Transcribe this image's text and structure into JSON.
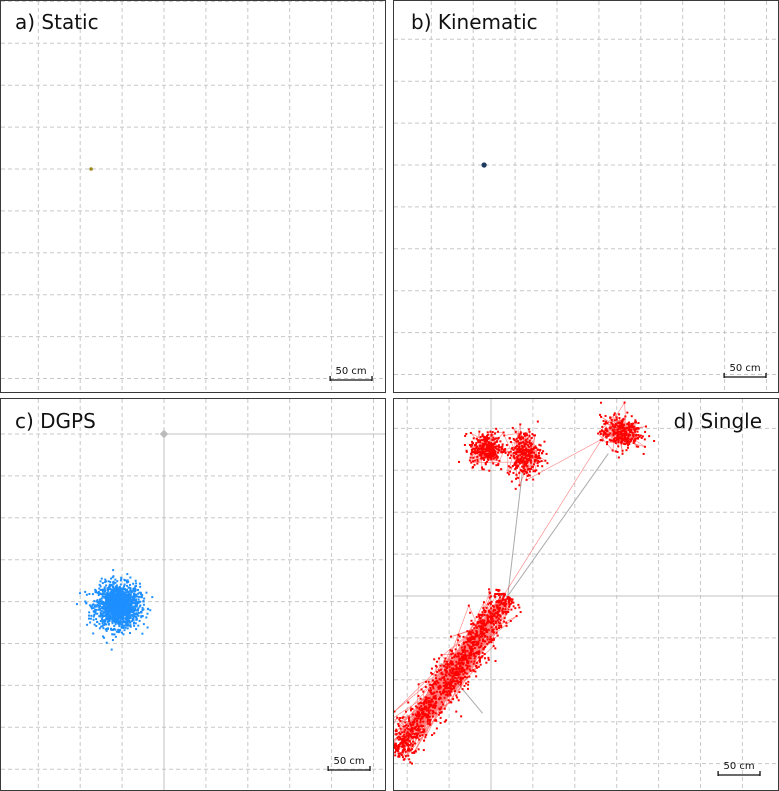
{
  "colors": {
    "grid": "#c8c8c8",
    "axis": "#c0c0c0",
    "track": "#aaaaaa",
    "static_point": "#9a8a1e",
    "kinematic_point": "#1d3a5c",
    "dgps_points": "#1e8fff",
    "single_points": "#ff0000"
  },
  "scale_bar_label": "50 cm",
  "chart_data": [
    {
      "type": "scatter",
      "label": "a) Static",
      "grid": true,
      "legend": "none",
      "points": [
        {
          "x": -87,
          "y": 0
        }
      ],
      "point_color": "#9a8a1e"
    },
    {
      "type": "scatter",
      "label": "b) Kinematic",
      "grid": true,
      "legend": "none",
      "points": [
        {
          "x": -87,
          "y": 0
        }
      ],
      "point_color": "#1d3a5c"
    },
    {
      "type": "scatter",
      "label": "c) DGPS",
      "grid": true,
      "legend": "none",
      "reference_point": {
        "x": 0,
        "y": 0
      },
      "cluster": {
        "center": {
          "x": -55,
          "y": -205
        },
        "spread": {
          "x": 13,
          "y": 13
        },
        "n": 1500
      },
      "point_color": "#1e8fff"
    },
    {
      "type": "scatter",
      "label": "d) Single",
      "grid": true,
      "legend": "none",
      "origin": {
        "x": 0,
        "y": 0
      },
      "clusters": [
        {
          "center": {
            "x": -5,
            "y": 175
          },
          "spread": {
            "x": 10,
            "y": 10
          },
          "n": 300
        },
        {
          "center": {
            "x": 40,
            "y": 170
          },
          "spread": {
            "x": 10,
            "y": 14
          },
          "n": 300
        },
        {
          "center": {
            "x": 155,
            "y": 195
          },
          "spread": {
            "x": 12,
            "y": 10
          },
          "n": 300
        }
      ],
      "elongated": {
        "start": {
          "x": 20,
          "y": 0
        },
        "end": {
          "x": -115,
          "y": -190
        },
        "width": 10,
        "n": 1200
      },
      "connections": [
        {
          "from": {
            "x": 20,
            "y": 0
          },
          "to": {
            "x": 40,
            "y": 170
          }
        },
        {
          "from": {
            "x": 20,
            "y": 0
          },
          "to": {
            "x": 140,
            "y": 170
          }
        },
        {
          "from": {
            "x": -60,
            "y": -80
          },
          "to": {
            "x": -10,
            "y": -140
          }
        }
      ],
      "point_color": "#ff0000"
    }
  ]
}
